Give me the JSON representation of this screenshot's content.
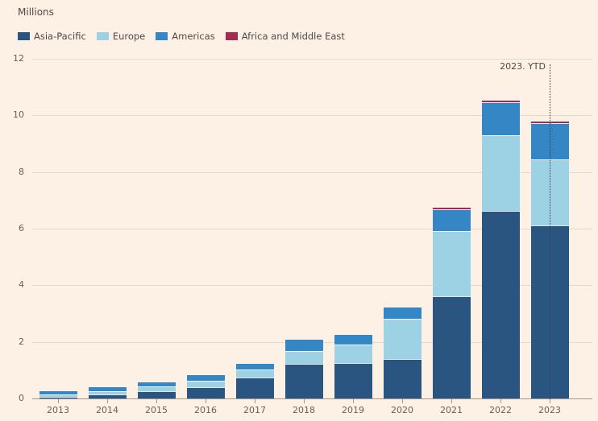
{
  "title": "Millions",
  "annotation": {
    "label": "2023. YTD"
  },
  "legend": [
    {
      "label": "Asia-Pacific",
      "color": "#2a5581"
    },
    {
      "label": "Europe",
      "color": "#9cd2e3"
    },
    {
      "label": "Americas",
      "color": "#3487c4"
    },
    {
      "label": "Africa and Middle East",
      "color": "#a12c52"
    }
  ],
  "colors": {
    "background": "#fdf0e4",
    "gridline": "#e7d9ca",
    "axis": "#a2968a",
    "tick_label": "#66605a",
    "text": "#4f4a46",
    "reference_line": "#3d3d3d"
  },
  "chart_data": {
    "type": "bar",
    "stacked": true,
    "title": "Millions",
    "ylabel": "Millions",
    "xlabel": "",
    "ylim": [
      0,
      12
    ],
    "yticks": [
      0,
      2,
      4,
      6,
      8,
      10,
      12
    ],
    "grid": true,
    "legend_position": "top-left",
    "categories": [
      "2013",
      "2014",
      "2015",
      "2016",
      "2017",
      "2018",
      "2019",
      "2020",
      "2021",
      "2022",
      "2023"
    ],
    "series": [
      {
        "name": "Asia-Pacific",
        "color": "#2a5581",
        "values": [
          0.05,
          0.15,
          0.26,
          0.41,
          0.74,
          1.22,
          1.26,
          1.4,
          3.62,
          6.64,
          6.1
        ]
      },
      {
        "name": "Europe",
        "color": "#9cd2e3",
        "values": [
          0.1,
          0.11,
          0.17,
          0.22,
          0.28,
          0.46,
          0.64,
          1.43,
          2.3,
          2.67,
          2.36
        ]
      },
      {
        "name": "Americas",
        "color": "#3487c4",
        "values": [
          0.1,
          0.15,
          0.14,
          0.19,
          0.21,
          0.4,
          0.36,
          0.38,
          0.77,
          1.16,
          1.26
        ]
      },
      {
        "name": "Africa and Middle East",
        "color": "#a12c52",
        "values": [
          0,
          0,
          0,
          0,
          0,
          0,
          0,
          0,
          0.04,
          0.05,
          0.05
        ]
      }
    ],
    "annotation": {
      "text": "2023. YTD",
      "x": "2023"
    }
  }
}
